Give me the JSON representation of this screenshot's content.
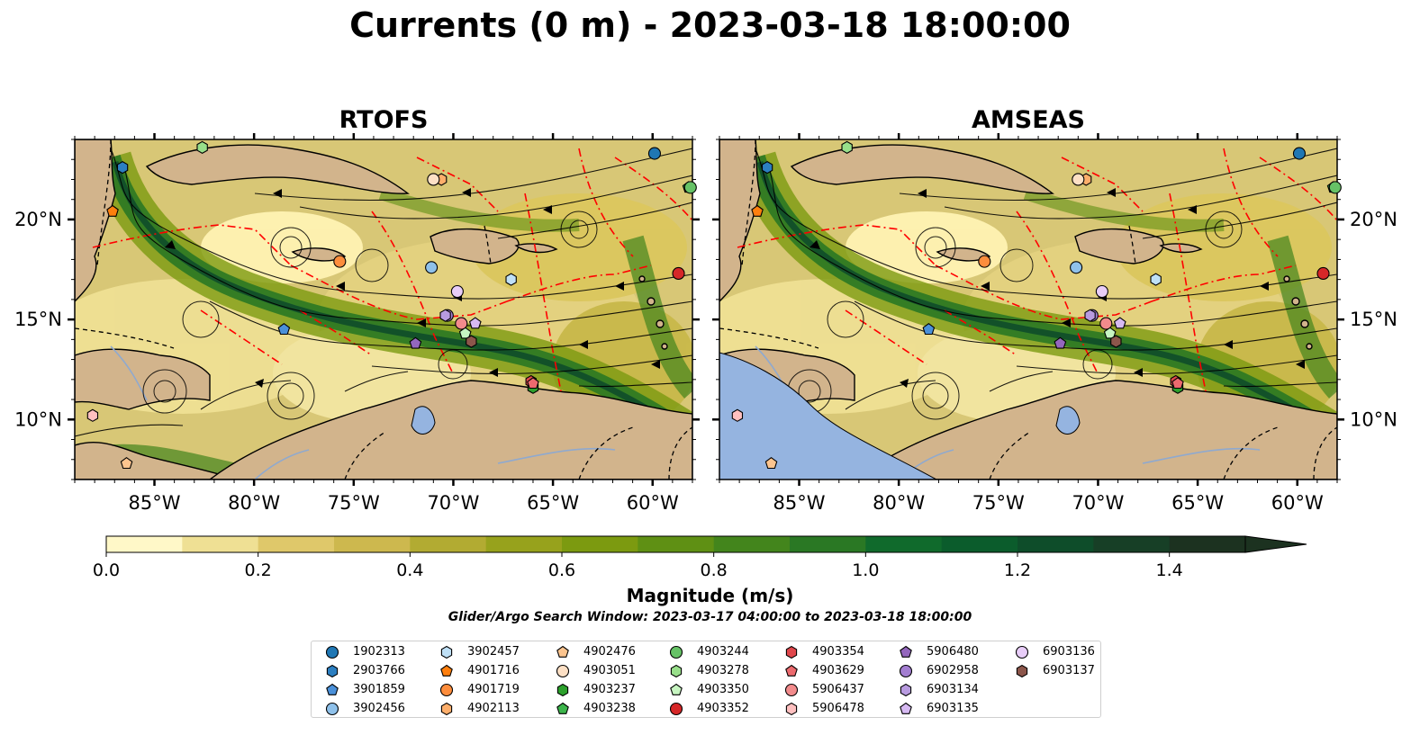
{
  "title": "Currents (0 m) - 2023-03-18 18:00:00",
  "panels": [
    {
      "title": "RTOFS"
    },
    {
      "title": "AMSEAS"
    }
  ],
  "map": {
    "lon_range": [
      -89.0,
      -58.0
    ],
    "lat_range": [
      7.0,
      24.0
    ],
    "lon_ticks": [
      "85°W",
      "80°W",
      "75°W",
      "70°W",
      "65°W",
      "60°W"
    ],
    "lat_ticks": [
      "20°N",
      "15°N",
      "10°N"
    ],
    "land_color": "#d2b48c",
    "lake_color": "#95b4e0",
    "eez_color": "#ff0000",
    "streamline_color": "#000000"
  },
  "colorbar": {
    "label": "Magnitude (m/s)",
    "min": 0.0,
    "max": 1.5,
    "extend": "max",
    "tick_labels": [
      "0.0",
      "0.2",
      "0.4",
      "0.6",
      "0.8",
      "1.0",
      "1.2",
      "1.4"
    ],
    "colors": [
      "#fff8c8",
      "#efe094",
      "#dfc86a",
      "#cdb84e",
      "#b2ab32",
      "#97a21c",
      "#7c9a10",
      "#5f9014",
      "#43851c",
      "#2a7824",
      "#106a2c",
      "#0b5c2c",
      "#0e4d2a",
      "#173f26",
      "#1c3220"
    ]
  },
  "search_window": "Glider/Argo Search Window: 2023-03-17 04:00:00 to 2023-03-18 18:00:00",
  "legend": [
    {
      "id": "1902313",
      "marker": "circle",
      "color": "#1f77b4"
    },
    {
      "id": "2903766",
      "marker": "hexagon",
      "color": "#2c7fc1"
    },
    {
      "id": "3901859",
      "marker": "pentagon",
      "color": "#4a90d9"
    },
    {
      "id": "3902456",
      "marker": "circle",
      "color": "#8fc1ea"
    },
    {
      "id": "3902457",
      "marker": "hexagon",
      "color": "#bfe0f6"
    },
    {
      "id": "4901716",
      "marker": "pentagon",
      "color": "#ff7f0e"
    },
    {
      "id": "4901719",
      "marker": "circle",
      "color": "#fd8d3c"
    },
    {
      "id": "4902113",
      "marker": "hexagon",
      "color": "#fdae6b"
    },
    {
      "id": "4902476",
      "marker": "pentagon",
      "color": "#fdc58f"
    },
    {
      "id": "4903051",
      "marker": "circle",
      "color": "#fde0c5"
    },
    {
      "id": "4903237",
      "marker": "hexagon",
      "color": "#2ca02c"
    },
    {
      "id": "4903238",
      "marker": "pentagon",
      "color": "#3cb44b"
    },
    {
      "id": "4903244",
      "marker": "circle",
      "color": "#66c266"
    },
    {
      "id": "4903278",
      "marker": "hexagon",
      "color": "#98df8a"
    },
    {
      "id": "4903350",
      "marker": "pentagon",
      "color": "#c7f5c1"
    },
    {
      "id": "4903352",
      "marker": "circle",
      "color": "#d62728"
    },
    {
      "id": "4903354",
      "marker": "hexagon",
      "color": "#e0474c"
    },
    {
      "id": "4903629",
      "marker": "pentagon",
      "color": "#ec6a6e"
    },
    {
      "id": "5906437",
      "marker": "circle",
      "color": "#f28b8c"
    },
    {
      "id": "5906478",
      "marker": "hexagon",
      "color": "#ffc0c0"
    },
    {
      "id": "5906480",
      "marker": "pentagon",
      "color": "#9467bd"
    },
    {
      "id": "6902958",
      "marker": "circle",
      "color": "#a37ed1"
    },
    {
      "id": "6903134",
      "marker": "hexagon",
      "color": "#b89be0"
    },
    {
      "id": "6903135",
      "marker": "pentagon",
      "color": "#d6b9f2"
    },
    {
      "id": "6903136",
      "marker": "circle",
      "color": "#e8cdf8"
    },
    {
      "id": "6903137",
      "marker": "hexagon",
      "color": "#8c564b"
    }
  ],
  "chart_data": {
    "type": "heatmap",
    "description_units": "lon/lat degrees",
    "markers": [
      {
        "id": "1902313",
        "lon": -59.9,
        "lat": 23.3
      },
      {
        "id": "2903766",
        "lon": -86.6,
        "lat": 22.6
      },
      {
        "id": "3901859",
        "lon": -78.5,
        "lat": 14.5
      },
      {
        "id": "3902456",
        "lon": -71.1,
        "lat": 17.6
      },
      {
        "id": "3902457",
        "lon": -67.1,
        "lat": 17.0
      },
      {
        "id": "4901716",
        "lon": -87.1,
        "lat": 20.4
      },
      {
        "id": "4901719",
        "lon": -75.7,
        "lat": 17.9
      },
      {
        "id": "4902113",
        "lon": -70.6,
        "lat": 22.0
      },
      {
        "id": "4902476",
        "lon": -86.4,
        "lat": 7.8
      },
      {
        "id": "4903051",
        "lon": -71.0,
        "lat": 22.0
      },
      {
        "id": "4903237",
        "lon": -66.0,
        "lat": 11.6
      },
      {
        "id": "4903238",
        "lon": -58.2,
        "lat": 21.6
      },
      {
        "id": "4903244",
        "lon": -58.1,
        "lat": 21.6
      },
      {
        "id": "4903278",
        "lon": -82.6,
        "lat": 23.6
      },
      {
        "id": "4903350",
        "lon": -69.4,
        "lat": 14.3
      },
      {
        "id": "4903352",
        "lon": -58.7,
        "lat": 17.3
      },
      {
        "id": "4903354",
        "lon": -66.1,
        "lat": 11.9
      },
      {
        "id": "4903629",
        "lon": -66.0,
        "lat": 11.8
      },
      {
        "id": "5906437",
        "lon": -69.6,
        "lat": 14.8
      },
      {
        "id": "5906478",
        "lon": -88.1,
        "lat": 10.2
      },
      {
        "id": "5906480",
        "lon": -71.9,
        "lat": 13.8
      },
      {
        "id": "6902958",
        "lon": -70.3,
        "lat": 15.2
      },
      {
        "id": "6903134",
        "lon": -70.4,
        "lat": 15.2
      },
      {
        "id": "6903135",
        "lon": -68.9,
        "lat": 14.8
      },
      {
        "id": "6903136",
        "lon": -69.8,
        "lat": 16.4
      },
      {
        "id": "6903137",
        "lon": -69.1,
        "lat": 13.9
      }
    ]
  }
}
